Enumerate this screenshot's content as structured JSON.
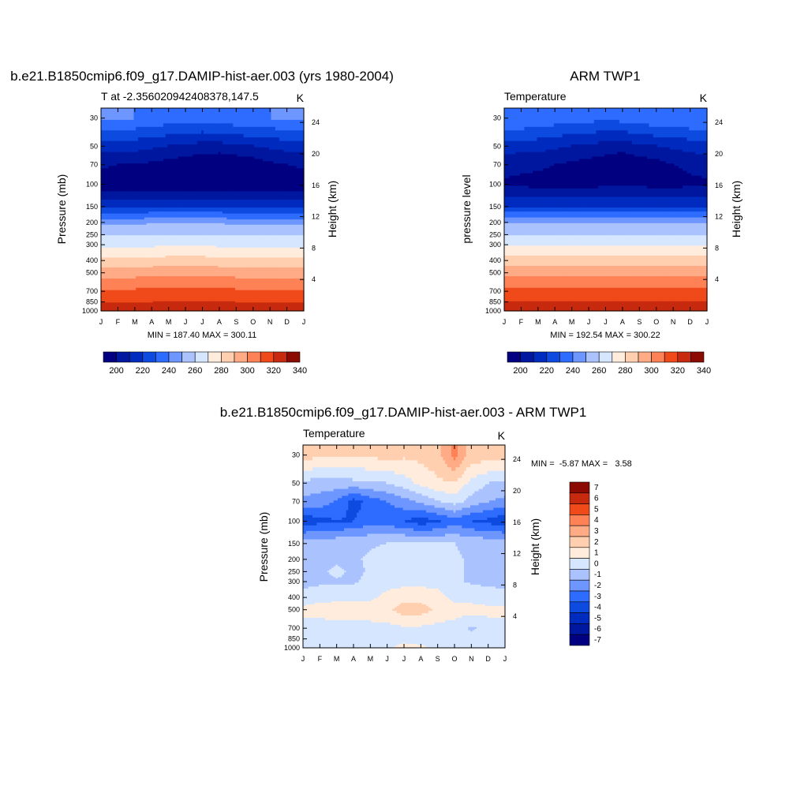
{
  "chart_data": [
    {
      "type": "heatmap",
      "title": "b.e21.B1850cmip6.f09_g17.DAMIP-hist-aer.003 (yrs 1980-2004)",
      "subtitle_left": "T at -2.356020942408378,147.5",
      "subtitle_right": "K",
      "ylabel": "Pressure (mb)",
      "ylabel_right": "Height (km)",
      "x_ticks": [
        "J",
        "F",
        "M",
        "A",
        "M",
        "J",
        "J",
        "A",
        "S",
        "O",
        "N",
        "D",
        "J"
      ],
      "y_ticks": [
        30,
        50,
        70,
        100,
        150,
        200,
        250,
        300,
        400,
        500,
        700,
        850,
        1000
      ],
      "y_ticks_right": [
        24,
        20,
        16,
        12,
        8,
        4
      ],
      "stats": "MIN = 187.40 MAX = 300.11",
      "colorbar": {
        "labels": [
          "200",
          "220",
          "240",
          "260",
          "280",
          "300",
          "320",
          "340"
        ],
        "colors": [
          "#000080",
          "#00179f",
          "#002bbf",
          "#0d4ae0",
          "#2e6cff",
          "#6e96ff",
          "#aac3ff",
          "#d6e6ff",
          "#ffecdd",
          "#ffcfb0",
          "#ffab86",
          "#ff8257",
          "#f04a1a",
          "#c72a0e",
          "#8b0b02"
        ]
      },
      "z": [
        [
          216,
          216,
          215,
          214,
          213,
          212,
          212,
          213,
          214,
          215,
          215,
          216,
          216
        ],
        [
          202,
          202,
          202,
          201,
          200,
          199,
          198,
          198,
          199,
          200,
          201,
          202,
          202
        ],
        [
          196,
          195,
          195,
          194,
          193,
          192,
          191,
          190,
          191,
          192,
          194,
          195,
          196
        ],
        [
          191,
          191,
          191,
          190,
          190,
          190,
          190,
          190,
          190,
          190,
          191,
          191,
          191
        ],
        [
          204,
          204,
          204,
          205,
          205,
          205,
          205,
          205,
          204,
          204,
          204,
          204,
          204
        ],
        [
          218,
          218,
          218,
          219,
          219,
          219,
          219,
          219,
          218,
          218,
          218,
          218,
          218
        ],
        [
          229,
          229,
          229,
          229,
          230,
          230,
          230,
          229,
          229,
          229,
          229,
          229,
          229
        ],
        [
          238,
          238,
          238,
          238,
          239,
          239,
          239,
          238,
          238,
          238,
          238,
          238,
          238
        ],
        [
          253,
          253,
          253,
          253,
          254,
          254,
          254,
          253,
          253,
          253,
          253,
          253,
          253
        ],
        [
          266,
          266,
          266,
          267,
          267,
          267,
          267,
          267,
          266,
          266,
          266,
          266,
          266
        ],
        [
          282,
          282,
          282,
          282,
          283,
          283,
          283,
          283,
          282,
          282,
          282,
          282,
          282
        ],
        [
          290,
          290,
          290,
          290,
          291,
          291,
          291,
          291,
          290,
          290,
          290,
          290,
          290
        ],
        [
          298,
          298,
          298,
          298,
          299,
          299,
          298,
          298,
          298,
          298,
          298,
          298,
          298
        ]
      ]
    },
    {
      "type": "heatmap",
      "title": "ARM TWP1",
      "subtitle_left": "Temperature",
      "subtitle_right": "K",
      "ylabel": "pressure level",
      "ylabel_right": "Height (km)",
      "x_ticks": [
        "J",
        "F",
        "M",
        "A",
        "M",
        "J",
        "J",
        "A",
        "S",
        "O",
        "N",
        "D",
        "J"
      ],
      "y_ticks": [
        30,
        50,
        70,
        100,
        150,
        200,
        250,
        300,
        400,
        500,
        700,
        850,
        1000
      ],
      "y_ticks_right": [
        24,
        20,
        16,
        12,
        8,
        4
      ],
      "stats": "MIN = 192.54 MAX = 300.22",
      "colorbar": {
        "labels": [
          "200",
          "220",
          "240",
          "260",
          "280",
          "300",
          "320",
          "340"
        ],
        "colors": [
          "#000080",
          "#00179f",
          "#002bbf",
          "#0d4ae0",
          "#2e6cff",
          "#6e96ff",
          "#aac3ff",
          "#d6e6ff",
          "#ffecdd",
          "#ffcfb0",
          "#ffab86",
          "#ff8257",
          "#f04a1a",
          "#c72a0e",
          "#8b0b02"
        ]
      },
      "z": [
        [
          215,
          215,
          214,
          213,
          212,
          212,
          211,
          212,
          213,
          214,
          214,
          215,
          215
        ],
        [
          203,
          202,
          202,
          201,
          200,
          199,
          198,
          197,
          199,
          200,
          201,
          202,
          203
        ],
        [
          197,
          196,
          196,
          195,
          194,
          193,
          192,
          191,
          192,
          193,
          195,
          196,
          197
        ],
        [
          194,
          194,
          193,
          193,
          193,
          193,
          194,
          194,
          194,
          193,
          193,
          194,
          194
        ],
        [
          205,
          205,
          205,
          205,
          205,
          205,
          205,
          205,
          205,
          205,
          205,
          205,
          205
        ],
        [
          219,
          219,
          219,
          219,
          219,
          219,
          219,
          219,
          219,
          219,
          219,
          219,
          219
        ],
        [
          230,
          230,
          230,
          230,
          230,
          230,
          230,
          230,
          230,
          230,
          230,
          230,
          230
        ],
        [
          239,
          239,
          239,
          239,
          239,
          239,
          239,
          239,
          239,
          239,
          239,
          239,
          239
        ],
        [
          254,
          254,
          254,
          254,
          254,
          254,
          254,
          254,
          254,
          254,
          254,
          254,
          254
        ],
        [
          267,
          267,
          267,
          267,
          267,
          267,
          267,
          267,
          267,
          267,
          267,
          267,
          267
        ],
        [
          283,
          283,
          283,
          283,
          283,
          283,
          283,
          283,
          283,
          283,
          283,
          283,
          283
        ],
        [
          291,
          291,
          291,
          291,
          291,
          291,
          291,
          291,
          291,
          291,
          291,
          291,
          291
        ],
        [
          299,
          299,
          299,
          299,
          299,
          299,
          299,
          299,
          299,
          299,
          299,
          299,
          299
        ]
      ]
    },
    {
      "type": "heatmap",
      "title": "b.e21.B1850cmip6.f09_g17.DAMIP-hist-aer.003 - ARM TWP1",
      "subtitle_left": "Temperature",
      "subtitle_right": "K",
      "ylabel": "Pressure (mb)",
      "ylabel_right": "Height (km)",
      "x_ticks": [
        "J",
        "F",
        "M",
        "A",
        "M",
        "J",
        "J",
        "A",
        "S",
        "O",
        "N",
        "D",
        "J"
      ],
      "y_ticks": [
        30,
        50,
        70,
        100,
        150,
        200,
        250,
        300,
        400,
        500,
        700,
        850,
        1000
      ],
      "y_ticks_right": [
        24,
        20,
        16,
        12,
        8,
        4
      ],
      "stats": "MIN =  -5.87 MAX =   3.58",
      "colorbar": {
        "labels": [
          "7",
          "6",
          "5",
          "4",
          "3",
          "2",
          "1",
          "0",
          "-1",
          "-2",
          "-3",
          "-4",
          "-5",
          "-6",
          "-7"
        ],
        "colors": [
          "#8b0b02",
          "#c72a0e",
          "#f04a1a",
          "#ff8257",
          "#ffab86",
          "#ffcfb0",
          "#ffecdd",
          "#d6e6ff",
          "#aac3ff",
          "#6e96ff",
          "#2e6cff",
          "#0d4ae0",
          "#002bbf",
          "#00179f",
          "#000080"
        ]
      },
      "z": [
        [
          1.5,
          1.2,
          1.3,
          1.1,
          1.2,
          1.4,
          1.2,
          1.3,
          1.6,
          3.4,
          1.5,
          1.6,
          1.5
        ],
        [
          -1.2,
          -1.5,
          -1.4,
          -1.3,
          -1.1,
          -1.0,
          -0.5,
          0.3,
          0.8,
          0.9,
          -0.3,
          -1.0,
          -1.2
        ],
        [
          -2.3,
          -2.5,
          -3.1,
          -4.5,
          -3.6,
          -3.0,
          -2.4,
          -1.8,
          -1.1,
          -0.6,
          -1.4,
          -2.0,
          -2.3
        ],
        [
          -4.8,
          -4.3,
          -4.1,
          -4.0,
          -3.3,
          -3.5,
          -4.0,
          -4.6,
          -4.1,
          -3.4,
          -4.0,
          -4.3,
          -4.8
        ],
        [
          -1.3,
          -1.4,
          -1.3,
          -1.2,
          -1.1,
          -1.0,
          -0.8,
          -0.8,
          -0.9,
          -1.0,
          -1.2,
          -1.3,
          -1.3
        ],
        [
          -1.2,
          -1.2,
          -1.2,
          -1.1,
          -0.9,
          -0.5,
          -0.3,
          -0.2,
          -0.4,
          -0.9,
          -1.1,
          -1.2,
          -1.2
        ],
        [
          -1.3,
          -1.2,
          -0.8,
          -1.2,
          -0.9,
          -0.4,
          -0.3,
          -0.3,
          -0.4,
          -0.9,
          -1.1,
          -1.2,
          -1.3
        ],
        [
          -1.3,
          -1.2,
          -1.1,
          -1.1,
          -0.8,
          -0.4,
          -0.3,
          -0.3,
          -0.4,
          -0.9,
          -1.1,
          -1.2,
          -1.3
        ],
        [
          -0.6,
          -0.4,
          -0.3,
          -0.3,
          -0.2,
          0.3,
          0.6,
          0.6,
          0.4,
          -0.3,
          -0.5,
          -0.6,
          -0.6
        ],
        [
          0.3,
          0.5,
          0.6,
          0.5,
          0.5,
          0.7,
          1.6,
          1.5,
          0.7,
          0.4,
          0.5,
          0.3,
          0.3
        ],
        [
          -0.5,
          -0.6,
          -0.4,
          -0.3,
          -0.3,
          -0.3,
          -0.2,
          -0.2,
          -0.3,
          -0.4,
          -1.2,
          -0.5,
          -0.5
        ],
        [
          -0.6,
          -0.5,
          -0.3,
          -0.2,
          -0.3,
          -0.2,
          -0.2,
          -0.2,
          -0.3,
          -0.4,
          -0.6,
          -0.5,
          -0.6
        ],
        [
          -0.3,
          -0.2,
          -0.2,
          -0.2,
          -0.2,
          -0.1,
          0.2,
          0.1,
          -0.1,
          -0.2,
          -0.3,
          -0.3,
          -0.3
        ]
      ]
    }
  ]
}
